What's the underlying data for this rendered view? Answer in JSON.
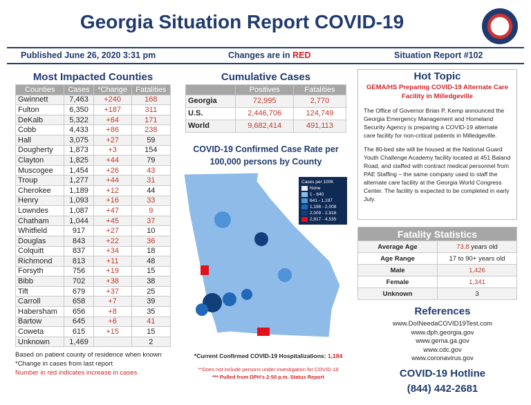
{
  "header": {
    "title": "Georgia Situation Report COVID-19",
    "published": "Published June 26, 2020 3:31 pm",
    "changes_prefix": "Changes are in ",
    "changes_red": "RED",
    "report_number": "Situation Report #102",
    "seal_text": "Georgia seal"
  },
  "counties": {
    "title": "Most Impacted Counties",
    "columns": [
      "Counties",
      "Cases",
      "*Change",
      "Fatalities"
    ],
    "rows": [
      [
        "Gwinnett",
        "7,463",
        "+240",
        "168",
        true
      ],
      [
        "Fulton",
        "6,350",
        "+187",
        "311",
        true
      ],
      [
        "DeKalb",
        "5,322",
        "+64",
        "171",
        true
      ],
      [
        "Cobb",
        "4,433",
        "+86",
        "238",
        true
      ],
      [
        "Hall",
        "3,075",
        "+27",
        "59",
        false
      ],
      [
        "Dougherty",
        "1,873",
        "+3",
        "154",
        false
      ],
      [
        "Clayton",
        "1,825",
        "+44",
        "79",
        false
      ],
      [
        "Muscogee",
        "1,454",
        "+26",
        "43",
        true
      ],
      [
        "Troup",
        "1,277",
        "+44",
        "31",
        true
      ],
      [
        "Cherokee",
        "1,189",
        "+12",
        "44",
        false
      ],
      [
        "Henry",
        "1,093",
        "+16",
        "33",
        true
      ],
      [
        "Lowndes",
        "1,087",
        "+47",
        "9",
        true
      ],
      [
        "Chatham",
        "1,044",
        "+45",
        "37",
        true
      ],
      [
        "Whitfield",
        "917",
        "+27",
        "10",
        false
      ],
      [
        "Douglas",
        "843",
        "+22",
        "36",
        true
      ],
      [
        "Colquitt",
        "837",
        "+34",
        "18",
        false
      ],
      [
        "Richmond",
        "813",
        "+11",
        "48",
        false
      ],
      [
        "Forsyth",
        "756",
        "+19",
        "15",
        false
      ],
      [
        "Bibb",
        "702",
        "+38",
        "38",
        false
      ],
      [
        "Tift",
        "679",
        "+37",
        "25",
        false
      ],
      [
        "Carroll",
        "658",
        "+7",
        "39",
        false
      ],
      [
        "Habersham",
        "656",
        "+8",
        "35",
        false
      ],
      [
        "Bartow",
        "645",
        "+6",
        "41",
        true
      ],
      [
        "Coweta",
        "615",
        "+15",
        "15",
        false
      ],
      [
        "Unknown",
        "1,469",
        "",
        "2",
        false
      ]
    ],
    "notes": [
      "Based on patient county of residence when known",
      "*Change in cases from last report",
      "Number in red indicates increase in cases"
    ]
  },
  "cumulative": {
    "title": "Cumulative Cases",
    "columns": [
      "",
      "Positives",
      "Fatalities"
    ],
    "rows": [
      [
        "Georgia",
        "72,995",
        "2,770"
      ],
      [
        "U.S.",
        "2,446,706",
        "124,749"
      ],
      [
        "World",
        "9,682,414",
        "491,113"
      ]
    ]
  },
  "map": {
    "title": "COVID-19 Confirmed Case Rate per 100,000 persons by County",
    "legend_title": "Cases per 100K",
    "legend": [
      {
        "label": "None",
        "color": "#e8f0fa"
      },
      {
        "label": "1 - 640",
        "color": "#8fbbe8"
      },
      {
        "label": "641 - 1,197",
        "color": "#4f93d8"
      },
      {
        "label": "1,198 - 2,008",
        "color": "#2168b8"
      },
      {
        "label": "2,009 - 2,916",
        "color": "#113f7a"
      },
      {
        "label": "2,917 - 4,535",
        "color": "#e0101c"
      }
    ],
    "hosp_label": "*Current Confirmed COVID-19 Hospitalizations: ",
    "hosp_value": "1,184",
    "note1": "**Does not include persons under investigation for COVID-19",
    "note2": "*** Pulled from DPH's 2:50 p.m. Status Report"
  },
  "hot_topic": {
    "title": "Hot Topic",
    "subtitle": "GEMA/HS Preparing COVID-19 Alternate Care Facility in Milledgeville",
    "p1": "The Office of Governor Brian P. Kemp announced the Georgia Emergency Management and Homeland Security Agency is preparing a COVID-19 alternate care facility for non-critical patients in Milledgeville.",
    "p2": "The 80-bed site will be housed at the National Guard Youth Challenge Academy facility located at 451 Baland Road, and staffed with contract medical personnel from PAE Staffing – the same company used to staff the alternate care facility at the Georgia World Congress Center. The facility is expected to be completed in early July."
  },
  "fatality": {
    "title": "Fatality Statistics",
    "rows": [
      [
        "Average Age",
        "73.8",
        " years old"
      ],
      [
        "Age Range",
        "",
        "17 to 90+ years old"
      ],
      [
        "Male",
        "1,426",
        ""
      ],
      [
        "Female",
        "1,341",
        ""
      ],
      [
        "Unknown",
        "",
        "3"
      ]
    ]
  },
  "references": {
    "title": "References",
    "links": [
      "www.DoINeedaCOVID19Test.com",
      "www.dph.georgia.gov",
      "www.gema.ga.gov",
      "www.cdc.gov",
      "www.coronavirus.gov"
    ]
  },
  "hotline": {
    "title": "COVID-19 Hotline",
    "number": "(844) 442-2681"
  }
}
